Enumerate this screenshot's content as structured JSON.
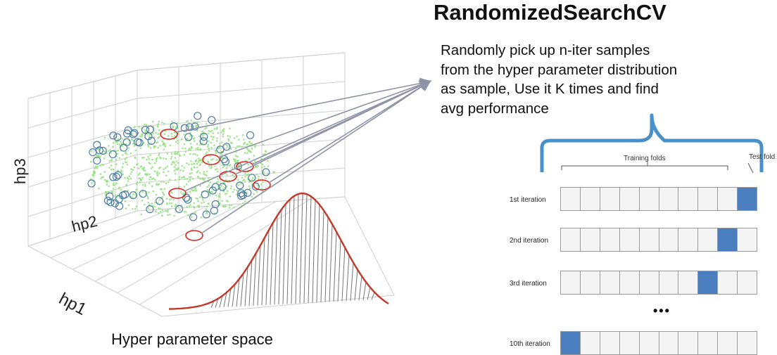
{
  "title": "RandomizedSearchCV",
  "description_lines": [
    "Randomly pick up n-iter samples",
    "from the hyper parameter distribution",
    "as sample, Use it K times and find",
    "avg performance"
  ],
  "hyperparameter_space": {
    "caption": "Hyper parameter space",
    "axis_labels": {
      "x": "hp1",
      "y": "hp2",
      "z": "hp3"
    },
    "sample_marker_color": "#e0231c",
    "cloud_color": "#8fe27a",
    "circle_color": "#4f7fa0",
    "curve_color": "#c0392b"
  },
  "cv_diagram": {
    "training_label": "Training folds",
    "test_label": "Test fold",
    "test_color": "#4a7ebf",
    "brace_color": "#4a90c8",
    "folds_per_row": 10,
    "ellipsis": "•••",
    "iterations": [
      {
        "label": "1st iteration",
        "test_fold_index": 9
      },
      {
        "label": "2nd iteration",
        "test_fold_index": 8
      },
      {
        "label": "3rd iteration",
        "test_fold_index": 7
      },
      {
        "label": "10th iteration",
        "test_fold_index": 0
      }
    ]
  }
}
